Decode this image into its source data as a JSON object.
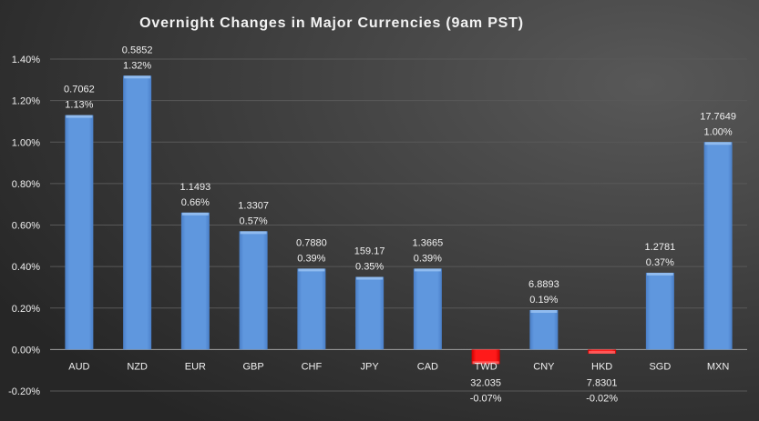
{
  "chart_data": {
    "type": "bar",
    "title": "Overnight Changes in Major Currencies (9am PST)",
    "categories": [
      "AUD",
      "NZD",
      "EUR",
      "GBP",
      "CHF",
      "JPY",
      "CAD",
      "TWD",
      "CNY",
      "HKD",
      "SGD",
      "MXN"
    ],
    "values": [
      1.13,
      1.32,
      0.66,
      0.57,
      0.39,
      0.35,
      0.39,
      -0.07,
      0.19,
      -0.02,
      0.37,
      1.0
    ],
    "value_labels": [
      "1.13%",
      "1.32%",
      "0.66%",
      "0.57%",
      "0.39%",
      "0.35%",
      "0.39%",
      "-0.07%",
      "0.19%",
      "-0.02%",
      "0.37%",
      "1.00%"
    ],
    "rates": [
      "0.7062",
      "0.5852",
      "1.1493",
      "1.3307",
      "0.7880",
      "159.17",
      "1.3665",
      "32.035",
      "6.8893",
      "7.8301",
      "1.2781",
      "17.7649"
    ],
    "ylim": [
      -0.2,
      1.4
    ],
    "yticks": [
      "-0.20%",
      "0.00%",
      "0.20%",
      "0.40%",
      "0.60%",
      "0.80%",
      "1.00%",
      "1.20%",
      "1.40%"
    ],
    "ytick_values": [
      -0.2,
      0,
      0.2,
      0.4,
      0.6,
      0.8,
      1.0,
      1.2,
      1.4
    ],
    "grid": true,
    "xlabel": "",
    "ylabel": "",
    "colors": {
      "positive": "#5b93dc",
      "negative": "#ee1111",
      "background": "#3a3a3a",
      "text": "#ffffff"
    }
  }
}
